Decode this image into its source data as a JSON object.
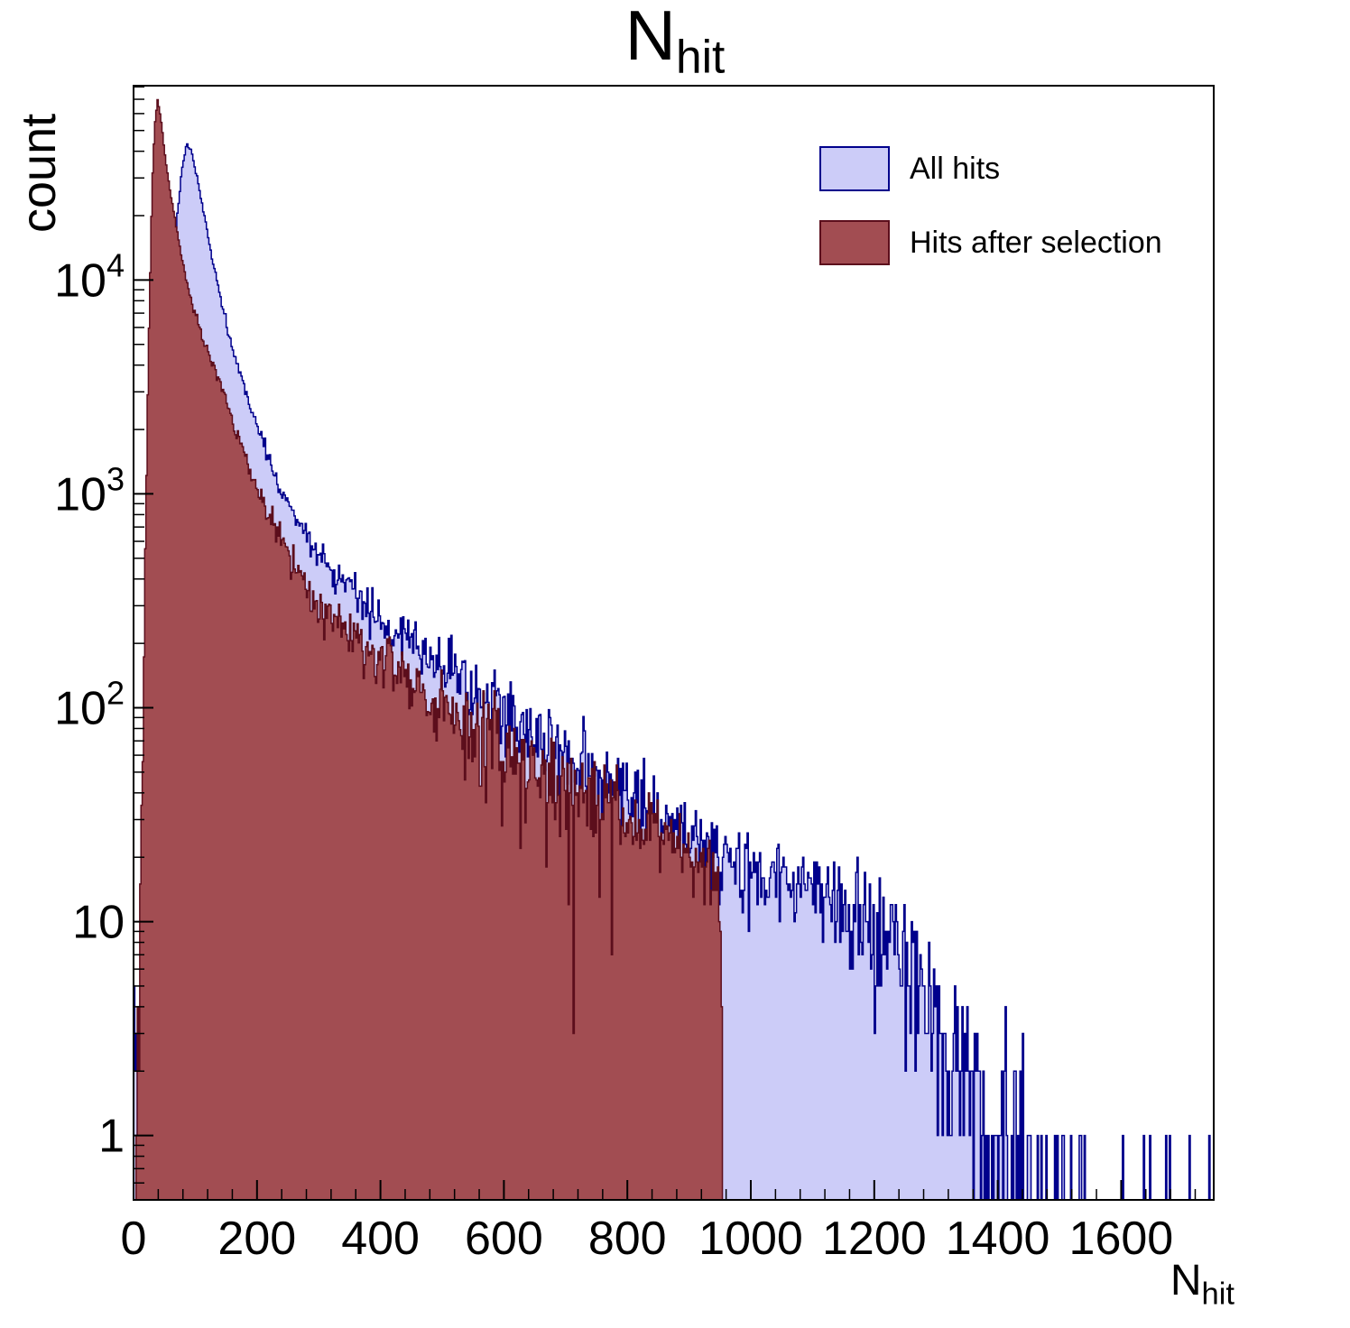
{
  "chart_data": {
    "type": "histogram",
    "title": "N_hit",
    "title_main": "N",
    "title_sub": "hit",
    "ylabel": "count",
    "xlabel_main": "N",
    "xlabel_sub": "hit",
    "legend_position": "top-right",
    "grid": false,
    "bin_width": 2,
    "x_axis": {
      "min": 0,
      "max": 1750,
      "major_step": 200,
      "minor_step": 40,
      "tick_values": [
        0,
        200,
        400,
        600,
        800,
        1000,
        1200,
        1400,
        1600
      ]
    },
    "y_axis": {
      "scale": "log",
      "min": 0.5,
      "max": 81000,
      "tick_exponents": [
        0,
        1,
        2,
        3,
        4
      ]
    },
    "series": [
      {
        "name": "All hits",
        "fill": "#CCCCF8",
        "stroke": "#00008C",
        "peak": {
          "x": 86,
          "count": 43500
        },
        "control_points": [
          [
            0,
            6
          ],
          [
            6,
            1
          ],
          [
            16,
            3
          ],
          [
            26,
            15
          ],
          [
            36,
            90
          ],
          [
            46,
            600
          ],
          [
            52,
            2000
          ],
          [
            58,
            5500
          ],
          [
            64,
            11000
          ],
          [
            70,
            19000
          ],
          [
            78,
            32000
          ],
          [
            86,
            43500
          ],
          [
            94,
            40000
          ],
          [
            102,
            31000
          ],
          [
            112,
            22000
          ],
          [
            122,
            15500
          ],
          [
            132,
            11000
          ],
          [
            145,
            7200
          ],
          [
            160,
            4900
          ],
          [
            180,
            3100
          ],
          [
            200,
            2100
          ],
          [
            215,
            1600
          ],
          [
            230,
            1150
          ],
          [
            260,
            800
          ],
          [
            290,
            590
          ],
          [
            320,
            460
          ],
          [
            350,
            370
          ],
          [
            380,
            305
          ],
          [
            410,
            255
          ],
          [
            440,
            215
          ],
          [
            470,
            185
          ],
          [
            500,
            160
          ],
          [
            530,
            138
          ],
          [
            560,
            118
          ],
          [
            600,
            97
          ],
          [
            640,
            80
          ],
          [
            680,
            66
          ],
          [
            720,
            55
          ],
          [
            760,
            46
          ],
          [
            800,
            39
          ],
          [
            840,
            33
          ],
          [
            880,
            27
          ],
          [
            920,
            23
          ],
          [
            960,
            20
          ],
          [
            1000,
            18
          ],
          [
            1050,
            16
          ],
          [
            1100,
            14
          ],
          [
            1150,
            12
          ],
          [
            1200,
            10
          ],
          [
            1240,
            8
          ],
          [
            1270,
            5.5
          ],
          [
            1300,
            3.5
          ],
          [
            1330,
            2.3
          ],
          [
            1360,
            1.6
          ],
          [
            1400,
            1.1
          ],
          [
            1440,
            0.7
          ],
          [
            1480,
            0.45
          ],
          [
            1520,
            0.3
          ],
          [
            1570,
            0.2
          ],
          [
            1620,
            0.12
          ],
          [
            1680,
            0.07
          ],
          [
            1750,
            0.04
          ]
        ]
      },
      {
        "name": "Hits after selection",
        "fill": "#A24D52",
        "stroke": "#5C0E1C",
        "peak": {
          "x": 39,
          "count": 70000
        },
        "cutoff_x": 950,
        "control_points": [
          [
            0,
            0.25
          ],
          [
            6,
            1.5
          ],
          [
            10,
            6
          ],
          [
            14,
            40
          ],
          [
            18,
            300
          ],
          [
            22,
            2000
          ],
          [
            26,
            9000
          ],
          [
            30,
            26000
          ],
          [
            34,
            52000
          ],
          [
            39,
            70000
          ],
          [
            44,
            58000
          ],
          [
            50,
            40000
          ],
          [
            57,
            29000
          ],
          [
            64,
            21500
          ],
          [
            72,
            16000
          ],
          [
            81,
            11500
          ],
          [
            90,
            8800
          ],
          [
            100,
            7000
          ],
          [
            112,
            5400
          ],
          [
            125,
            4300
          ],
          [
            138,
            3500
          ],
          [
            150,
            2700
          ],
          [
            165,
            2000
          ],
          [
            180,
            1500
          ],
          [
            200,
            1050
          ],
          [
            225,
            740
          ],
          [
            250,
            530
          ],
          [
            275,
            400
          ],
          [
            300,
            310
          ],
          [
            330,
            250
          ],
          [
            360,
            205
          ],
          [
            400,
            165
          ],
          [
            440,
            138
          ],
          [
            480,
            112
          ],
          [
            520,
            92
          ],
          [
            560,
            78
          ],
          [
            600,
            67
          ],
          [
            640,
            56
          ],
          [
            680,
            47
          ],
          [
            720,
            40
          ],
          [
            760,
            35
          ],
          [
            800,
            30
          ],
          [
            840,
            26
          ],
          [
            880,
            22
          ],
          [
            910,
            20
          ],
          [
            930,
            18.5
          ],
          [
            948,
            17
          ],
          [
            951,
            8
          ],
          [
            955,
            2
          ],
          [
            960,
            0.4
          ],
          [
            966,
            0.07
          ],
          [
            972,
            0
          ],
          [
            1750,
            0
          ]
        ]
      }
    ]
  }
}
